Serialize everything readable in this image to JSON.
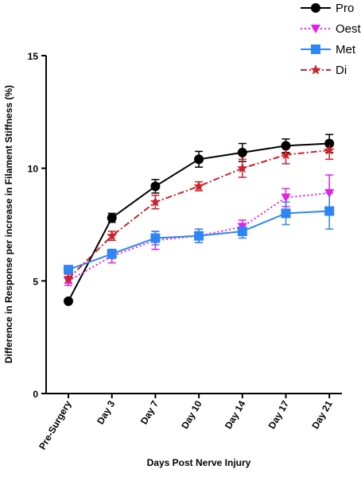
{
  "chart_data": {
    "type": "line",
    "title": "",
    "xlabel": "Days Post Nerve Injury",
    "ylabel": "Difference in Response per increase in Filament Stiffness (%)",
    "ylim": [
      0,
      15
    ],
    "yticks": [
      0,
      5,
      10,
      15
    ],
    "categories": [
      "Pre-Surgery",
      "Day 3",
      "Day 7",
      "Day 10",
      "Day 14",
      "Day 17",
      "Day 21"
    ],
    "grid": false,
    "legend_position": "top-right",
    "series": [
      {
        "name": "Pro",
        "color": "#000000",
        "line_style": "solid",
        "marker": "circle",
        "values": [
          4.1,
          7.8,
          9.2,
          10.4,
          10.7,
          11.0,
          11.1
        ],
        "errors": [
          0.0,
          0.2,
          0.3,
          0.35,
          0.4,
          0.3,
          0.4
        ]
      },
      {
        "name": "Oest",
        "color": "#e61ee6",
        "line_style": "dotted",
        "marker": "triangle-down",
        "values": [
          5.0,
          6.1,
          6.8,
          7.0,
          7.4,
          8.7,
          8.9
        ],
        "errors": [
          0.2,
          0.3,
          0.4,
          0.3,
          0.3,
          0.4,
          0.8
        ]
      },
      {
        "name": "Met",
        "color": "#2e86f5",
        "line_style": "solid",
        "marker": "square",
        "values": [
          5.5,
          6.2,
          6.9,
          7.0,
          7.2,
          8.0,
          8.1
        ],
        "errors": [
          0.1,
          0.2,
          0.3,
          0.3,
          0.3,
          0.5,
          0.8
        ]
      },
      {
        "name": "Di",
        "color": "#cc2229",
        "line_style": "dashdot",
        "marker": "star",
        "values": [
          5.1,
          7.0,
          8.5,
          9.2,
          10.0,
          10.6,
          10.8
        ],
        "errors": [
          0.2,
          0.2,
          0.3,
          0.2,
          0.4,
          0.4,
          0.4
        ]
      }
    ]
  }
}
